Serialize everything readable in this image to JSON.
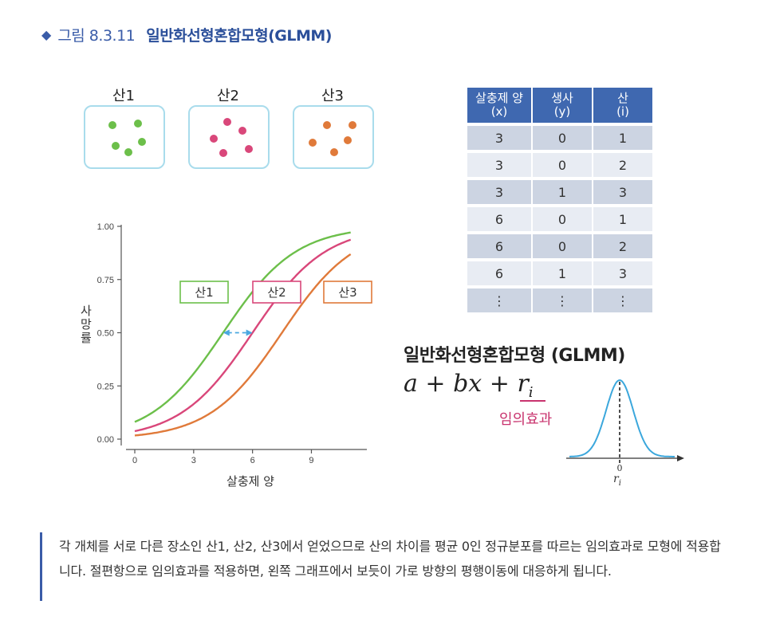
{
  "header": {
    "marker": "◆",
    "figure_number": "그림 8.3.11",
    "figure_name": "일반화선형혼합모형(GLMM)"
  },
  "mountains": [
    {
      "label": "산1",
      "color": "#6cbf4a"
    },
    {
      "label": "산2",
      "color": "#d9477a"
    },
    {
      "label": "산3",
      "color": "#e07a3a"
    }
  ],
  "table": {
    "headers": [
      {
        "line1": "살충제 양",
        "line2": "(x)"
      },
      {
        "line1": "생사",
        "line2": "(y)"
      },
      {
        "line1": "산",
        "line2": "(i)"
      }
    ],
    "rows": [
      [
        "3",
        "0",
        "1"
      ],
      [
        "3",
        "0",
        "2"
      ],
      [
        "3",
        "1",
        "3"
      ],
      [
        "6",
        "0",
        "1"
      ],
      [
        "6",
        "0",
        "2"
      ],
      [
        "6",
        "1",
        "3"
      ],
      [
        "⋮",
        "⋮",
        "⋮"
      ]
    ]
  },
  "chart_data": {
    "type": "line",
    "xlabel": "살충제 양",
    "ylabel": "사망률",
    "x_ticks": [
      "0",
      "3",
      "6",
      "9"
    ],
    "y_ticks": [
      "0.00",
      "0.25",
      "0.50",
      "0.75",
      "1.00"
    ],
    "xlim": [
      0,
      11.5
    ],
    "ylim": [
      0,
      1
    ],
    "series": [
      {
        "name": "산1",
        "color": "#6cbf4a",
        "shift": 4.5,
        "scale": 1.85
      },
      {
        "name": "산2",
        "color": "#d9477a",
        "shift": 6.0,
        "scale": 1.85
      },
      {
        "name": "산3",
        "color": "#e07a3a",
        "shift": 7.5,
        "scale": 1.85
      }
    ]
  },
  "glmm": {
    "title": "일반화선형혼합모형 (GLMM)",
    "formula_main": "a + bx + ",
    "formula_ri": "r",
    "formula_ri_sub": "i",
    "random_effect_label": "임의효과",
    "dist_x_tick": "0",
    "dist_x_label": "r",
    "dist_x_label_sub": "i"
  },
  "caption": "각 개체를 서로 다른 장소인 산1, 산2, 산3에서 얻었으므로 산의 차이를 평균 0인 정규분포를 따르는 임의효과로 모형에 적용합니다. 절편항으로 임의효과를 적용하면, 왼쪽 그래프에서 보듯이 가로 방향의 평행이동에 대응하게 됩니다."
}
